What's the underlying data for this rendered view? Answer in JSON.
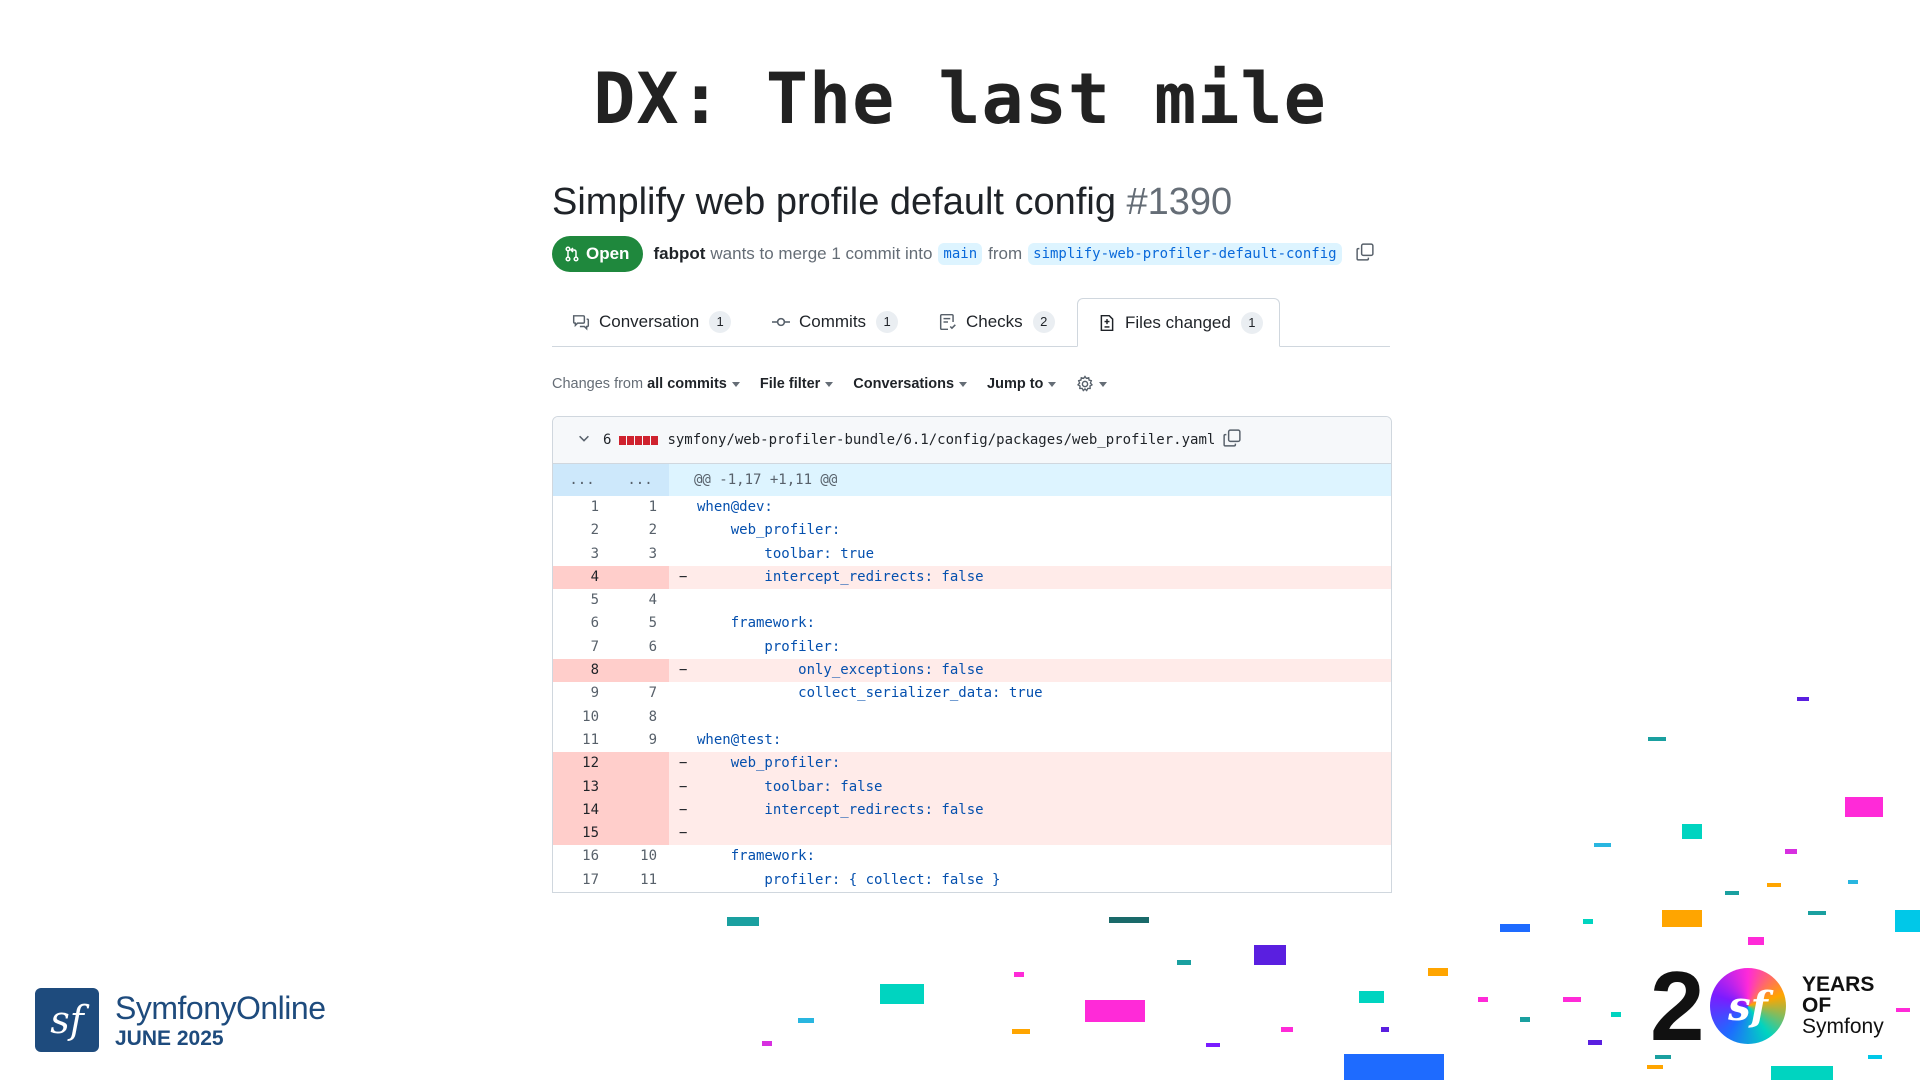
{
  "slide": {
    "title": "DX: The last mile"
  },
  "pr": {
    "title": "Simplify web profile default config",
    "number": "#1390",
    "status": "Open",
    "author": "fabpot",
    "merge_text": "wants to merge 1 commit into",
    "base_branch": "main",
    "from_text": "from",
    "head_branch": "simplify-web-profiler-default-config"
  },
  "tabs": [
    {
      "label": "Conversation",
      "count": "1",
      "icon": "comment-icon"
    },
    {
      "label": "Commits",
      "count": "1",
      "icon": "commit-icon"
    },
    {
      "label": "Checks",
      "count": "2",
      "icon": "checklist-icon"
    },
    {
      "label": "Files changed",
      "count": "1",
      "icon": "file-diff-icon"
    }
  ],
  "filters": {
    "changes_prefix": "Changes from",
    "changes_value": "all commits",
    "file_filter": "File filter",
    "conversations": "Conversations",
    "jump_to": "Jump to"
  },
  "diff": {
    "change_count": "6",
    "file_path": "symfony/web-profiler-bundle/6.1/config/packages/web_profiler.yaml",
    "hunk_left": "...",
    "hunk_right": "...",
    "hunk_header": "@@ -1,17 +1,11 @@",
    "rows": [
      {
        "old": "1",
        "new": "1",
        "type": "ctx",
        "text": "when@dev:"
      },
      {
        "old": "2",
        "new": "2",
        "type": "ctx",
        "text": "    web_profiler:"
      },
      {
        "old": "3",
        "new": "3",
        "type": "ctx",
        "text": "        toolbar: true"
      },
      {
        "old": "4",
        "new": "",
        "type": "del",
        "text": "        intercept_redirects: false"
      },
      {
        "old": "5",
        "new": "4",
        "type": "ctx",
        "text": ""
      },
      {
        "old": "6",
        "new": "5",
        "type": "ctx",
        "text": "    framework:"
      },
      {
        "old": "7",
        "new": "6",
        "type": "ctx",
        "text": "        profiler:"
      },
      {
        "old": "8",
        "new": "",
        "type": "del",
        "text": "            only_exceptions: false"
      },
      {
        "old": "9",
        "new": "7",
        "type": "ctx",
        "text": "            collect_serializer_data: true"
      },
      {
        "old": "10",
        "new": "8",
        "type": "ctx",
        "text": ""
      },
      {
        "old": "11",
        "new": "9",
        "type": "ctx",
        "text": "when@test:"
      },
      {
        "old": "12",
        "new": "",
        "type": "del",
        "text": "    web_profiler:"
      },
      {
        "old": "13",
        "new": "",
        "type": "del",
        "text": "        toolbar: false"
      },
      {
        "old": "14",
        "new": "",
        "type": "del",
        "text": "        intercept_redirects: false"
      },
      {
        "old": "15",
        "new": "",
        "type": "del",
        "text": ""
      },
      {
        "old": "16",
        "new": "10",
        "type": "ctx",
        "text": "    framework:"
      },
      {
        "old": "17",
        "new": "11",
        "type": "ctx",
        "text": "        profiler: { collect: false }"
      }
    ]
  },
  "logo_left": {
    "line1": "SymfonyOnline",
    "line2": "JUNE 2025",
    "mark": "sf"
  },
  "logo_right": {
    "number": "2",
    "mark": "sf",
    "line1": "YEARS",
    "line2": "OF",
    "line3": "Symfony"
  },
  "colors": {
    "open_green": "#1f883d",
    "deletion_red": "#cf222e",
    "deletion_bg": "#ffebe9",
    "symfony_blue": "#1e4b7d"
  }
}
